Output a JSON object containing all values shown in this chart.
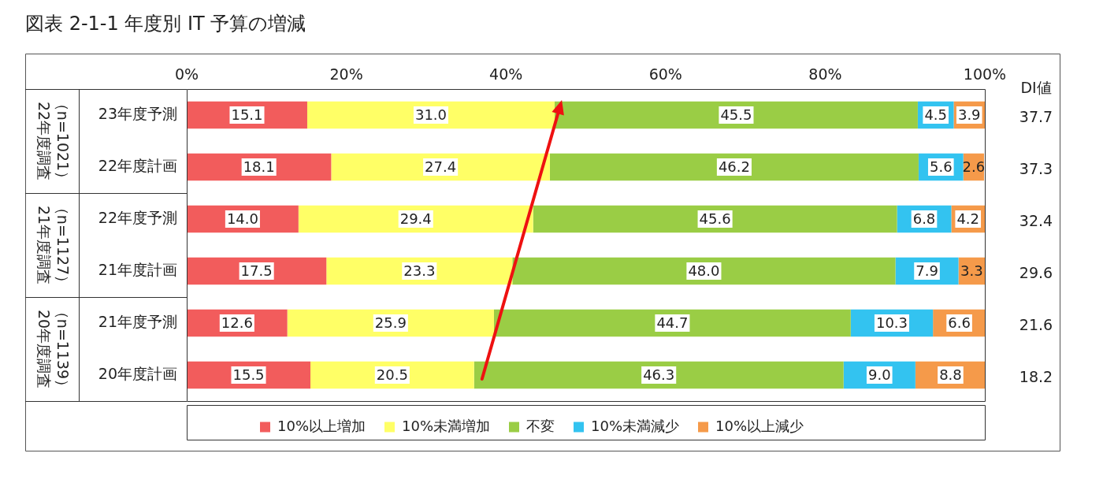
{
  "chart_data": {
    "type": "bar",
    "orientation": "horizontal",
    "stacked": true,
    "title": "図表 2-1-1  年度別  IT 予算の増減",
    "categories": [
      "23年度予測",
      "22年度計画",
      "22年度予測",
      "21年度計画",
      "21年度予測",
      "20年度計画"
    ],
    "series": [
      {
        "name": "10%以上増加",
        "color": "#f25c5c",
        "values": [
          15.1,
          18.1,
          14.0,
          17.5,
          12.6,
          15.5
        ],
        "value_labels": [
          "15.1",
          "18.1",
          "14.0",
          "17.5",
          "12.6",
          "15.5"
        ]
      },
      {
        "name": "10%未満増加",
        "color": "#ffff66",
        "values": [
          31.0,
          27.4,
          29.4,
          23.3,
          25.9,
          20.5
        ],
        "value_labels": [
          "31.0",
          "27.4",
          "29.4",
          "23.3",
          "25.9",
          "20.5"
        ]
      },
      {
        "name": "不変",
        "color": "#9acd45",
        "values": [
          45.5,
          46.2,
          45.6,
          48.0,
          44.7,
          46.3
        ],
        "value_labels": [
          "45.5",
          "46.2",
          "45.6",
          "48.0",
          "44.7",
          "46.3"
        ]
      },
      {
        "name": "10%未満減少",
        "color": "#33c3f0",
        "values": [
          4.5,
          5.6,
          6.8,
          7.9,
          10.3,
          9.0
        ],
        "value_labels": [
          "4.5",
          "5.6",
          "6.8",
          "7.9",
          "10.3",
          "9.0"
        ]
      },
      {
        "name": "10%以上減少",
        "color": "#f59a4a",
        "values": [
          3.9,
          2.6,
          4.2,
          3.3,
          6.6,
          8.8
        ],
        "value_labels": [
          "3.9",
          "2.6",
          "4.2",
          "3.3",
          "6.6",
          "8.8"
        ]
      }
    ],
    "xlim": [
      0,
      100
    ],
    "xticks": [
      {
        "value": 0,
        "label": "0%"
      },
      {
        "value": 20,
        "label": "20%"
      },
      {
        "value": 40,
        "label": "40%"
      },
      {
        "value": 60,
        "label": "60%"
      },
      {
        "value": 80,
        "label": "80%"
      },
      {
        "value": 100,
        "label": "100%"
      }
    ],
    "legend": "bottom",
    "annotations": [
      "DI値",
      "37.7",
      "37.3",
      "32.4",
      "29.6",
      "21.6",
      "18.2",
      "22年度調査（n=1021）",
      "21年度調査（n=1127）",
      "20年度調査（n=1139）"
    ]
  }
}
